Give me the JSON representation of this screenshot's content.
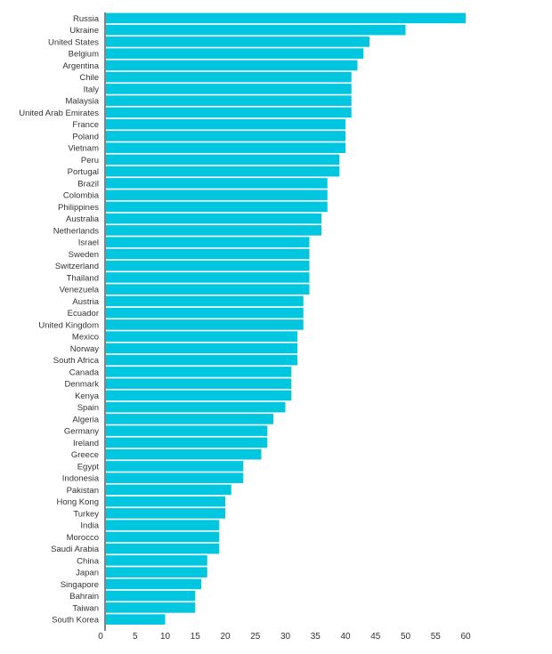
{
  "chart_data": {
    "type": "bar",
    "orientation": "horizontal",
    "title": "",
    "xlabel": "",
    "ylabel": "",
    "xlim": [
      0,
      60
    ],
    "xticks": [
      0,
      5,
      10,
      15,
      20,
      25,
      30,
      35,
      40,
      45,
      50,
      55,
      60
    ],
    "bar_color": "#00c6e0",
    "axis_color": "#333333",
    "categories": [
      "Russia",
      "Ukraine",
      "United States",
      "Belgium",
      "Argentina",
      "Chile",
      "Italy",
      "Malaysia",
      "United Arab Emirates",
      "France",
      "Poland",
      "Vietnam",
      "Peru",
      "Portugal",
      "Brazil",
      "Colombia",
      "Philippines",
      "Australia",
      "Netherlands",
      "Israel",
      "Sweden",
      "Switzerland",
      "Thailand",
      "Venezuela",
      "Austria",
      "Ecuador",
      "United Kingdom",
      "Mexico",
      "Norway",
      "South Africa",
      "Canada",
      "Denmark",
      "Kenya",
      "Spain",
      "Algeria",
      "Germany",
      "Ireland",
      "Greece",
      "Egypt",
      "Indonesia",
      "Pakistan",
      "Hong Kong",
      "Turkey",
      "India",
      "Morocco",
      "Saudi Arabia",
      "China",
      "Japan",
      "Singapore",
      "Bahrain",
      "Taiwan",
      "South Korea"
    ],
    "values": [
      60,
      50,
      44,
      43,
      42,
      41,
      41,
      41,
      41,
      40,
      40,
      40,
      39,
      39,
      37,
      37,
      37,
      36,
      36,
      34,
      34,
      34,
      34,
      34,
      33,
      33,
      33,
      32,
      32,
      32,
      31,
      31,
      31,
      30,
      28,
      27,
      27,
      26,
      23,
      23,
      21,
      20,
      20,
      19,
      19,
      19,
      17,
      17,
      16,
      15,
      15,
      10
    ]
  }
}
